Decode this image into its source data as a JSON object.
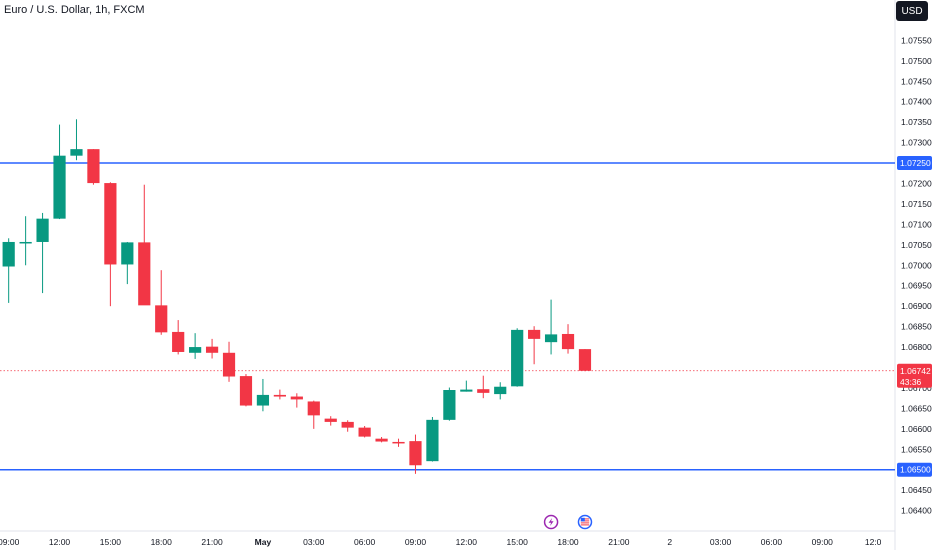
{
  "header": {
    "symbol": "Euro / U.S. Dollar, 1h, FXCM",
    "currency_button": "USD"
  },
  "chart_data": {
    "type": "candlestick",
    "title": "Euro / U.S. Dollar, 1h, FXCM",
    "currency": "USD",
    "y_ticks": [
      "1.07550",
      "1.07500",
      "1.07450",
      "1.07400",
      "1.07350",
      "1.07300",
      "1.07200",
      "1.07150",
      "1.07100",
      "1.07050",
      "1.07000",
      "1.06950",
      "1.06900",
      "1.06850",
      "1.06800",
      "1.06700",
      "1.06650",
      "1.06600",
      "1.06550",
      "1.06450",
      "1.06400"
    ],
    "ylim": [
      1.0636,
      1.0759
    ],
    "x_ticks": [
      {
        "label": "09:00",
        "slot": 0.5
      },
      {
        "label": "12:00",
        "slot": 3.5
      },
      {
        "label": "15:00",
        "slot": 6.5
      },
      {
        "label": "18:00",
        "slot": 9.5
      },
      {
        "label": "21:00",
        "slot": 12.5
      },
      {
        "label": "May",
        "slot": 15.5
      },
      {
        "label": "03:00",
        "slot": 18.5
      },
      {
        "label": "06:00",
        "slot": 21.5
      },
      {
        "label": "09:00",
        "slot": 24.5
      },
      {
        "label": "12:00",
        "slot": 27.5
      },
      {
        "label": "15:00",
        "slot": 30.5
      },
      {
        "label": "18:00",
        "slot": 33.5
      },
      {
        "label": "21:00",
        "slot": 36.5
      },
      {
        "label": "2",
        "slot": 39.5
      },
      {
        "label": "03:00",
        "slot": 42.5
      },
      {
        "label": "06:00",
        "slot": 45.5
      },
      {
        "label": "09:00",
        "slot": 48.5
      },
      {
        "label": "12:0",
        "slot": 51.5
      }
    ],
    "candles": [
      {
        "o": 1.06997,
        "h": 1.07066,
        "l": 1.06908,
        "c": 1.07057
      },
      {
        "o": 1.07057,
        "h": 1.0712,
        "l": 1.07,
        "c": 1.07057
      },
      {
        "o": 1.07057,
        "h": 1.07128,
        "l": 1.06932,
        "c": 1.07114
      },
      {
        "o": 1.07114,
        "h": 1.07344,
        "l": 1.07113,
        "c": 1.07268
      },
      {
        "o": 1.07268,
        "h": 1.07357,
        "l": 1.07257,
        "c": 1.07284
      },
      {
        "o": 1.07284,
        "h": 1.07284,
        "l": 1.07197,
        "c": 1.07201
      },
      {
        "o": 1.07201,
        "h": 1.07203,
        "l": 1.069,
        "c": 1.07002
      },
      {
        "o": 1.07002,
        "h": 1.07057,
        "l": 1.06954,
        "c": 1.07056
      },
      {
        "o": 1.07056,
        "h": 1.07197,
        "l": 1.06903,
        "c": 1.06902
      },
      {
        "o": 1.06902,
        "h": 1.06988,
        "l": 1.0683,
        "c": 1.06836
      },
      {
        "o": 1.06837,
        "h": 1.06866,
        "l": 1.06782,
        "c": 1.06788
      },
      {
        "o": 1.06786,
        "h": 1.06834,
        "l": 1.06771,
        "c": 1.068
      },
      {
        "o": 1.06801,
        "h": 1.0682,
        "l": 1.06772,
        "c": 1.06786
      },
      {
        "o": 1.06786,
        "h": 1.06813,
        "l": 1.06715,
        "c": 1.06728
      },
      {
        "o": 1.06729,
        "h": 1.06734,
        "l": 1.06655,
        "c": 1.06657
      },
      {
        "o": 1.06657,
        "h": 1.06722,
        "l": 1.06643,
        "c": 1.06683
      },
      {
        "o": 1.06683,
        "h": 1.06696,
        "l": 1.06672,
        "c": 1.06679
      },
      {
        "o": 1.06679,
        "h": 1.06687,
        "l": 1.06652,
        "c": 1.06672
      },
      {
        "o": 1.06667,
        "h": 1.06669,
        "l": 1.066,
        "c": 1.06633
      },
      {
        "o": 1.06625,
        "h": 1.06631,
        "l": 1.06608,
        "c": 1.06617
      },
      {
        "o": 1.06617,
        "h": 1.06621,
        "l": 1.06593,
        "c": 1.06603
      },
      {
        "o": 1.06603,
        "h": 1.06607,
        "l": 1.06579,
        "c": 1.06581
      },
      {
        "o": 1.06576,
        "h": 1.0658,
        "l": 1.06567,
        "c": 1.06569
      },
      {
        "o": 1.06568,
        "h": 1.06576,
        "l": 1.06556,
        "c": 1.06565
      },
      {
        "o": 1.0657,
        "h": 1.06586,
        "l": 1.0649,
        "c": 1.06511
      },
      {
        "o": 1.06521,
        "h": 1.06629,
        "l": 1.0652,
        "c": 1.06622
      },
      {
        "o": 1.06622,
        "h": 1.06701,
        "l": 1.0662,
        "c": 1.06695
      },
      {
        "o": 1.06691,
        "h": 1.06718,
        "l": 1.06691,
        "c": 1.06696
      },
      {
        "o": 1.06697,
        "h": 1.0673,
        "l": 1.06675,
        "c": 1.06688
      },
      {
        "o": 1.06685,
        "h": 1.06714,
        "l": 1.06672,
        "c": 1.06703
      },
      {
        "o": 1.06704,
        "h": 1.06846,
        "l": 1.06703,
        "c": 1.06842
      },
      {
        "o": 1.06842,
        "h": 1.06851,
        "l": 1.06758,
        "c": 1.0682
      },
      {
        "o": 1.06812,
        "h": 1.06916,
        "l": 1.06782,
        "c": 1.06831
      },
      {
        "o": 1.06832,
        "h": 1.06856,
        "l": 1.06784,
        "c": 1.06795
      },
      {
        "o": 1.06795,
        "h": 1.06795,
        "l": 1.06741,
        "c": 1.06742
      }
    ],
    "levels": [
      {
        "value": 1.0725,
        "label": "1.07250"
      },
      {
        "value": 1.065,
        "label": "1.06500"
      }
    ],
    "current_price": {
      "value": 1.06742,
      "label": "1.06742",
      "countdown": "43:36"
    },
    "colors": {
      "up": "#089981",
      "down": "#f23645",
      "level": "#2962ff",
      "current": "#f23645"
    },
    "event_icons": [
      {
        "name": "lightning-event-icon",
        "slot": 32.5,
        "color": "#9c27b0"
      },
      {
        "name": "us-flag-event-icon",
        "slot": 34.5,
        "color": "#2962ff"
      }
    ]
  }
}
